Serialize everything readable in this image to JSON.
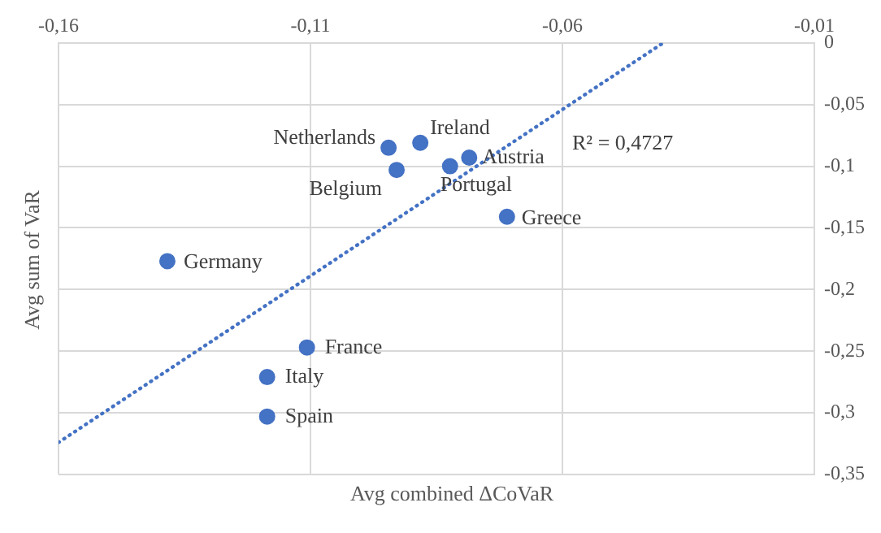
{
  "chart_data": {
    "type": "scatter",
    "xlabel": "Avg combined ΔCoVaR",
    "ylabel": "Avg sum of VaR",
    "xlim": [
      -0.16,
      -0.01
    ],
    "ylim": [
      -0.35,
      0
    ],
    "xticks": [
      {
        "value": -0.16,
        "label": "-0,16"
      },
      {
        "value": -0.11,
        "label": "-0,11"
      },
      {
        "value": -0.06,
        "label": "-0,06"
      },
      {
        "value": -0.01,
        "label": "-0,01"
      }
    ],
    "yticks": [
      {
        "value": -0.35,
        "label": "-0,35"
      },
      {
        "value": -0.3,
        "label": "-0,3"
      },
      {
        "value": -0.25,
        "label": "-0,25"
      },
      {
        "value": -0.2,
        "label": "-0,2"
      },
      {
        "value": -0.15,
        "label": "-0,15"
      },
      {
        "value": -0.1,
        "label": "-0,1"
      },
      {
        "value": -0.05,
        "label": "-0,05"
      },
      {
        "value": 0,
        "label": "0"
      }
    ],
    "grid": true,
    "legend": false,
    "marker": "circle",
    "series": [
      {
        "color": "#4472c4",
        "x": [
          -0.0945,
          -0.0882,
          -0.0785,
          -0.0929,
          -0.0823,
          -0.071,
          -0.1384,
          -0.1107,
          -0.1186,
          -0.1186
        ],
        "values": [
          -0.085,
          -0.081,
          -0.093,
          -0.103,
          -0.1,
          -0.141,
          -0.177,
          -0.247,
          -0.271,
          -0.303
        ]
      },
      {
        "type": "line",
        "color": "#4472c4",
        "line_style": "dotted",
        "marker": "none",
        "x": [
          -0.16,
          -0.04
        ],
        "values": [
          -0.324,
          0
        ]
      }
    ],
    "annotations": [
      {
        "text": "Netherlands",
        "x": -0.0945,
        "y": -0.085
      },
      {
        "text": "Ireland",
        "x": -0.0882,
        "y": -0.081
      },
      {
        "text": "Austria",
        "x": -0.0785,
        "y": -0.093
      },
      {
        "text": "Belgium",
        "x": -0.0929,
        "y": -0.103
      },
      {
        "text": "Portugal",
        "x": -0.0823,
        "y": -0.1
      },
      {
        "text": "Greece",
        "x": -0.071,
        "y": -0.141
      },
      {
        "text": "Germany",
        "x": -0.1384,
        "y": -0.177
      },
      {
        "text": "France",
        "x": -0.1107,
        "y": -0.247
      },
      {
        "text": "Italy",
        "x": -0.1186,
        "y": -0.271
      },
      {
        "text": "Spain",
        "x": -0.1186,
        "y": -0.303
      },
      "R² = 0,4727"
    ]
  }
}
